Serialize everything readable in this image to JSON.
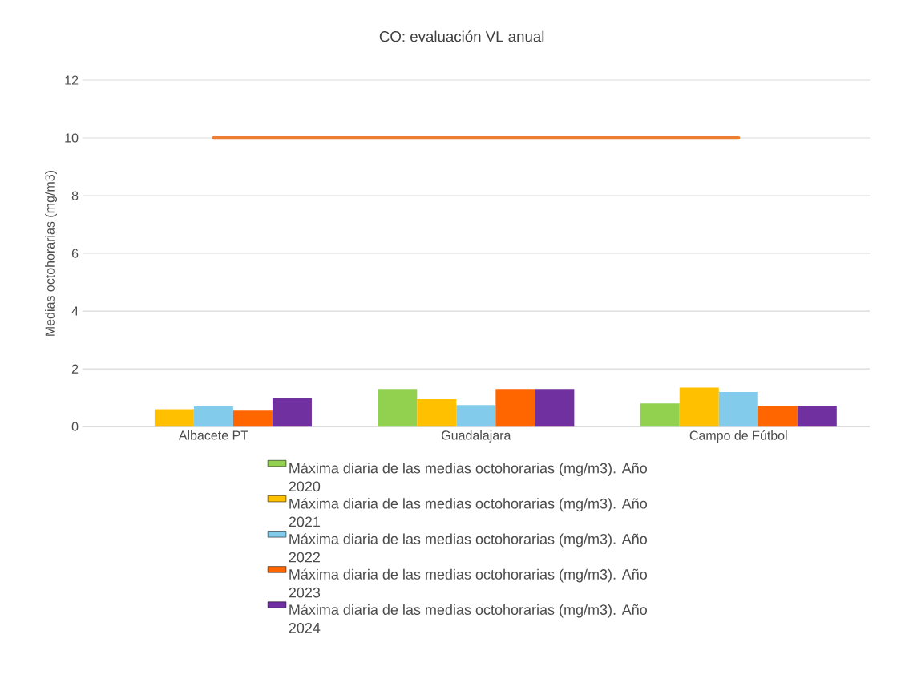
{
  "chart_data": {
    "type": "bar",
    "title": "CO: evaluación VL anual",
    "ylabel": "Medias octohorarias (mg/m3)",
    "categories": [
      "Albacete PT",
      "Guadalajara",
      "Campo de Fútbol"
    ],
    "series": [
      {
        "name": "Máxima diaria de las medias octohorarias (mg/m3). Año 2020",
        "color": "#92d050",
        "values": [
          null,
          1.3,
          0.8
        ]
      },
      {
        "name": "Máxima diaria de las medias octohorarias (mg/m3). Año 2021",
        "color": "#ffc000",
        "values": [
          0.6,
          0.95,
          1.35
        ]
      },
      {
        "name": "Máxima diaria de las medias octohorarias (mg/m3). Año 2022",
        "color": "#83cbeb",
        "values": [
          0.7,
          0.75,
          1.2
        ]
      },
      {
        "name": "Máxima diaria de las medias octohorarias (mg/m3). Año 2023",
        "color": "#ff6600",
        "values": [
          0.55,
          1.3,
          0.72
        ]
      },
      {
        "name": "Máxima diaria de las medias octohorarias (mg/m3). Año 2024",
        "color": "#7030a0",
        "values": [
          1.0,
          1.3,
          0.72
        ]
      },
      {
        "type": "line",
        "color": "#ed7d31",
        "values": [
          10,
          10,
          10
        ]
      }
    ],
    "ylim": [
      0,
      12
    ],
    "yticks": [
      0,
      2,
      4,
      6,
      8,
      10,
      12
    ],
    "grid": "y",
    "legend": "bottom"
  }
}
